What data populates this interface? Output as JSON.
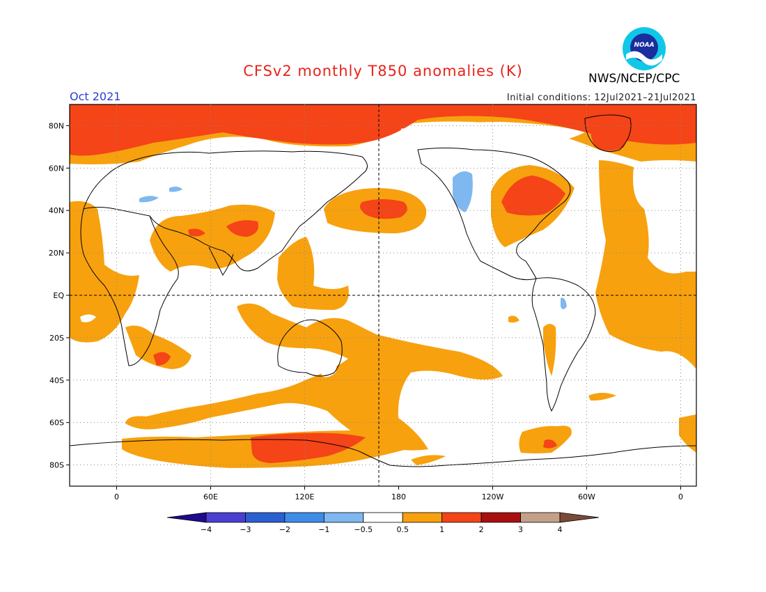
{
  "title": "CFSv2 monthly T850 anomalies (K)",
  "agency": "NWS/NCEP/CPC",
  "logo_text": "NOAA",
  "month": "Oct 2021",
  "initial_conditions": "Initial conditions: 12Jul2021–21Jul2021",
  "map": {
    "projection": "cylindrical-equidistant",
    "lon_range": [
      -30,
      370
    ],
    "lat_range": [
      -90,
      90
    ],
    "lat_labels": [
      {
        "lat": 80,
        "text": "80N"
      },
      {
        "lat": 60,
        "text": "60N"
      },
      {
        "lat": 40,
        "text": "40N"
      },
      {
        "lat": 20,
        "text": "20N"
      },
      {
        "lat": 0,
        "text": "EQ"
      },
      {
        "lat": -20,
        "text": "20S"
      },
      {
        "lat": -40,
        "text": "40S"
      },
      {
        "lat": -60,
        "text": "60S"
      },
      {
        "lat": -80,
        "text": "80S"
      }
    ],
    "lon_labels": [
      {
        "lon": 0,
        "text": "0"
      },
      {
        "lon": 60,
        "text": "60E"
      },
      {
        "lon": 120,
        "text": "120E"
      },
      {
        "lon": 180,
        "text": "180"
      },
      {
        "lon": 240,
        "text": "120W"
      },
      {
        "lon": 300,
        "text": "60W"
      },
      {
        "lon": 360,
        "text": "0"
      }
    ]
  },
  "colorbar": {
    "labels": [
      "−4",
      "−3",
      "−2",
      "−1",
      "−0.5",
      "0.5",
      "1",
      "2",
      "3",
      "4"
    ],
    "colors": [
      "#1e0a8c",
      "#4a3fd0",
      "#2a5fd0",
      "#3f8ce8",
      "#7fb8f0",
      "#ffffff",
      "#f7a10f",
      "#f44418",
      "#a80f0f",
      "#c4a08a",
      "#7a4a38"
    ]
  },
  "colors": {
    "warm1": "#f7a10f",
    "warm2": "#f44418",
    "cool1": "#7fb8f0"
  }
}
